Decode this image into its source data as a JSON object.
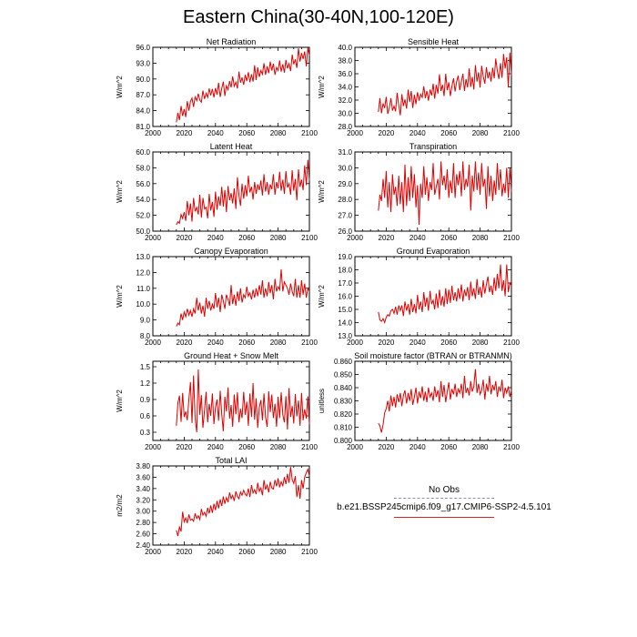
{
  "title": "Eastern China(30-40N,100-120E)",
  "colors": {
    "model": "#e00000",
    "obs": "#9a9ac0"
  },
  "legend": {
    "obs_label": "No Obs",
    "model_label": "b.e21.BSSP245cmip6.f09_g17.CMIP6-SSP2-4.5.101"
  },
  "chart_data": [
    {
      "type": "line",
      "title": "Net Radiation",
      "ylabel": "W/m^2",
      "xlim": [
        2000,
        2100
      ],
      "ylim": [
        81,
        96
      ],
      "xticks": [
        "2000",
        "2020",
        "2040",
        "2060",
        "2080",
        "2100"
      ],
      "yticks": [
        "81.0",
        "84.0",
        "87.0",
        "90.0",
        "93.0",
        "96.0"
      ],
      "x_start": 2015,
      "x_step": 1,
      "series": [
        {
          "name": "model",
          "values": [
            81.8,
            83.6,
            82.2,
            84.9,
            83.0,
            84.3,
            82.8,
            85.8,
            84.0,
            85.7,
            86.4,
            84.7,
            86.6,
            85.9,
            87.2,
            86.0,
            85.6,
            87.8,
            86.2,
            87.3,
            86.5,
            88.2,
            86.9,
            88.1,
            86.5,
            88.3,
            87.0,
            89.3,
            86.6,
            88.2,
            89.5,
            86.8,
            88.7,
            88.0,
            89.6,
            88.4,
            90.5,
            88.6,
            89.4,
            88.2,
            91.4,
            89.3,
            90.3,
            88.9,
            90.8,
            89.6,
            91.3,
            89.4,
            90.9,
            89.5,
            92.6,
            89.8,
            92.2,
            90.4,
            91.6,
            90.9,
            93.0,
            90.8,
            92.4,
            91.1,
            93.3,
            91.6,
            92.9,
            90.8,
            92.2,
            91.6,
            93.5,
            91.4,
            92.8,
            91.2,
            93.6,
            92.0,
            92.9,
            91.5,
            94.6,
            92.8,
            93.7,
            92.1,
            95.8,
            93.3,
            94.9,
            93.8,
            95.2,
            92.4,
            95.9,
            94.4
          ]
        }
      ]
    },
    {
      "type": "line",
      "title": "Sensible Heat",
      "ylabel": "W/m^2",
      "xlim": [
        2000,
        2100
      ],
      "ylim": [
        28,
        40
      ],
      "xticks": [
        "2000",
        "2020",
        "2040",
        "2060",
        "2080",
        "2100"
      ],
      "yticks": [
        "28.0",
        "30.0",
        "32.0",
        "34.0",
        "36.0",
        "38.0",
        "40.0"
      ],
      "x_start": 2015,
      "x_step": 1,
      "series": [
        {
          "name": "model",
          "values": [
            30.2,
            32.3,
            30.0,
            31.5,
            30.8,
            32.5,
            29.9,
            30.8,
            32.3,
            30.4,
            31.1,
            30.3,
            33.1,
            31.2,
            29.7,
            32.9,
            31.1,
            32.1,
            30.7,
            33.6,
            31.7,
            33.4,
            30.8,
            32.8,
            31.4,
            33.2,
            31.9,
            32.9,
            32.4,
            34.1,
            32.3,
            33.4,
            31.9,
            33.6,
            32.7,
            34.5,
            32.2,
            34.3,
            33.0,
            35.9,
            33.4,
            34.3,
            32.6,
            36.0,
            33.5,
            34.7,
            32.6,
            34.1,
            35.3,
            33.3,
            34.8,
            35.7,
            33.5,
            34.8,
            36.0,
            33.4,
            35.2,
            33.9,
            36.8,
            34.0,
            35.5,
            33.6,
            37.3,
            34.8,
            36.2,
            33.9,
            37.2,
            35.6,
            34.5,
            37.0,
            35.3,
            36.3,
            34.8,
            36.9,
            35.3,
            38.3,
            36.4,
            35.2,
            37.6,
            35.4,
            39.0,
            36.8,
            38.5,
            33.9,
            39.2,
            35.8
          ]
        }
      ]
    },
    {
      "type": "line",
      "title": "Latent Heat",
      "ylabel": "W/m^2",
      "xlim": [
        2000,
        2100
      ],
      "ylim": [
        50,
        60
      ],
      "xticks": [
        "2000",
        "2020",
        "2040",
        "2060",
        "2080",
        "2100"
      ],
      "yticks": [
        "50.0",
        "52.0",
        "54.0",
        "56.0",
        "58.0",
        "60.0"
      ],
      "x_start": 2015,
      "x_step": 1,
      "series": [
        {
          "name": "model",
          "values": [
            50.8,
            51.2,
            51.0,
            52.1,
            51.6,
            52.4,
            51.3,
            53.8,
            52.0,
            53.5,
            51.2,
            54.2,
            52.5,
            53.0,
            52.1,
            54.6,
            51.7,
            54.2,
            52.8,
            53.0,
            51.6,
            54.7,
            52.6,
            53.7,
            51.8,
            55.0,
            52.7,
            54.4,
            53.2,
            55.6,
            53.1,
            55.2,
            52.4,
            55.7,
            53.9,
            54.8,
            53.5,
            55.4,
            52.8,
            56.8,
            54.5,
            53.2,
            56.0,
            54.1,
            55.8,
            54.4,
            57.0,
            54.9,
            55.6,
            54.0,
            56.2,
            54.7,
            55.9,
            55.2,
            56.4,
            54.5,
            57.2,
            55.0,
            56.2,
            54.6,
            55.9,
            55.3,
            57.2,
            54.6,
            56.2,
            55.4,
            57.5,
            55.1,
            56.5,
            54.7,
            57.6,
            55.5,
            56.0,
            54.6,
            57.7,
            55.1,
            56.6,
            53.9,
            57.8,
            55.6,
            56.5,
            55.2,
            58.3,
            55.8,
            59.0,
            56.4
          ]
        }
      ]
    },
    {
      "type": "line",
      "title": "Transpiration",
      "ylabel": "W/m^2",
      "xlim": [
        2000,
        2100
      ],
      "ylim": [
        26,
        31
      ],
      "xticks": [
        "2000",
        "2020",
        "2040",
        "2060",
        "2080",
        "2100"
      ],
      "yticks": [
        "26.0",
        "27.0",
        "28.0",
        "29.0",
        "30.0",
        "31.0"
      ],
      "x_start": 2015,
      "x_step": 1,
      "series": [
        {
          "name": "model",
          "values": [
            27.3,
            28.3,
            27.9,
            29.3,
            28.1,
            29.8,
            27.5,
            29.1,
            27.2,
            29.6,
            28.3,
            28.8,
            27.6,
            29.5,
            27.7,
            29.1,
            27.2,
            30.2,
            27.6,
            29.4,
            27.9,
            30.1,
            28.1,
            29.6,
            27.5,
            28.9,
            26.4,
            29.0,
            28.1,
            30.1,
            28.3,
            29.4,
            27.9,
            29.1,
            28.6,
            30.3,
            28.3,
            28.8,
            29.3,
            28.0,
            30.4,
            28.9,
            29.5,
            28.6,
            29.9,
            28.1,
            29.2,
            28.4,
            30.3,
            28.1,
            29.6,
            28.9,
            29.8,
            28.2,
            30.4,
            28.6,
            29.3,
            28.8,
            30.2,
            27.3,
            29.5,
            28.5,
            30.4,
            28.6,
            29.7,
            28.3,
            30.3,
            28.8,
            29.3,
            27.4,
            30.1,
            28.2,
            29.5,
            27.9,
            29.2,
            28.3,
            30.3,
            28.6,
            29.9,
            28.2,
            29.0,
            28.4,
            30.0,
            28.1,
            30.0,
            28.5
          ]
        }
      ]
    },
    {
      "type": "line",
      "title": "Canopy Evaporation",
      "ylabel": "W/m^2",
      "xlim": [
        2000,
        2100
      ],
      "ylim": [
        8,
        13
      ],
      "xticks": [
        "2000",
        "2020",
        "2040",
        "2060",
        "2080",
        "2100"
      ],
      "yticks": [
        "8.0",
        "9.0",
        "10.0",
        "11.0",
        "12.0",
        "13.0"
      ],
      "x_start": 2015,
      "x_step": 1,
      "series": [
        {
          "name": "model",
          "values": [
            8.6,
            8.8,
            8.7,
            9.4,
            9.0,
            9.5,
            9.2,
            9.7,
            9.3,
            9.6,
            9.2,
            9.7,
            9.4,
            10.4,
            9.6,
            10.1,
            9.4,
            9.9,
            9.2,
            10.4,
            9.7,
            10.2,
            9.6,
            10.0,
            9.7,
            10.7,
            9.8,
            10.4,
            9.5,
            10.6,
            10.2,
            9.7,
            10.6,
            10.3,
            9.9,
            11.2,
            10.0,
            10.6,
            9.9,
            10.8,
            10.2,
            11.0,
            10.1,
            10.6,
            10.4,
            11.1,
            10.5,
            10.7,
            10.3,
            10.9,
            10.4,
            11.0,
            10.5,
            11.2,
            10.6,
            11.5,
            10.4,
            11.0,
            10.5,
            11.4,
            10.7,
            11.2,
            10.3,
            11.6,
            10.8,
            11.1,
            10.9,
            12.2,
            10.8,
            11.4,
            11.2,
            11.0,
            10.6,
            11.3,
            10.8,
            10.5,
            11.6,
            10.4,
            11.2,
            10.4,
            11.5,
            10.6,
            11.3,
            10.4,
            11.0,
            10.8
          ]
        }
      ]
    },
    {
      "type": "line",
      "title": "Ground Evaporation",
      "ylabel": "W/m^2",
      "xlim": [
        2000,
        2100
      ],
      "ylim": [
        13,
        19
      ],
      "xticks": [
        "2000",
        "2020",
        "2040",
        "2060",
        "2080",
        "2100"
      ],
      "yticks": [
        "13.0",
        "14.0",
        "15.0",
        "16.0",
        "17.0",
        "18.0",
        "19.0"
      ],
      "x_start": 2015,
      "x_step": 1,
      "series": [
        {
          "name": "model",
          "values": [
            14.8,
            14.2,
            14.1,
            14.3,
            14.0,
            14.4,
            14.6,
            14.5,
            14.9,
            15.0,
            14.7,
            15.2,
            14.6,
            15.3,
            14.9,
            15.3,
            14.5,
            15.6,
            14.9,
            15.4,
            14.6,
            15.8,
            14.8,
            15.4,
            14.7,
            16.1,
            15.0,
            15.6,
            14.8,
            16.3,
            15.2,
            15.9,
            14.9,
            16.4,
            15.4,
            15.7,
            15.0,
            16.2,
            15.1,
            16.5,
            15.3,
            16.0,
            15.2,
            16.6,
            15.4,
            16.5,
            15.5,
            16.8,
            15.7,
            16.3,
            15.6,
            16.6,
            15.8,
            16.9,
            15.6,
            16.5,
            16.0,
            16.7,
            15.7,
            17.1,
            16.0,
            16.6,
            15.8,
            17.3,
            16.1,
            16.7,
            15.9,
            17.2,
            16.2,
            16.9,
            17.5,
            16.3,
            16.8,
            16.1,
            17.4,
            16.4,
            17.7,
            16.6,
            18.4,
            16.4,
            17.2,
            16.0,
            18.4,
            16.3,
            17.0,
            16.8
          ]
        }
      ]
    },
    {
      "type": "line",
      "title": "Ground Heat + Snow Melt",
      "ylabel": "W/m^2",
      "xlim": [
        2000,
        2100
      ],
      "ylim": [
        0.15,
        1.6
      ],
      "xticks": [
        "2000",
        "2020",
        "2040",
        "2060",
        "2080",
        "2100"
      ],
      "yticks": [
        "0.3",
        "0.6",
        "0.9",
        "1.2",
        "1.5"
      ],
      "x_start": 2015,
      "x_step": 1,
      "series": [
        {
          "name": "model",
          "values": [
            0.42,
            0.84,
            0.97,
            0.49,
            1.02,
            0.58,
            0.68,
            0.52,
            0.91,
            1.22,
            0.47,
            1.34,
            0.56,
            0.3,
            1.45,
            0.62,
            0.98,
            0.38,
            0.71,
            1.04,
            0.48,
            0.82,
            0.6,
            1.01,
            0.45,
            0.75,
            0.9,
            0.51,
            1.06,
            0.63,
            0.32,
            0.95,
            0.68,
            1.12,
            0.55,
            0.8,
            0.4,
            0.99,
            0.63,
            1.03,
            0.48,
            0.73,
            0.56,
            1.04,
            0.62,
            0.86,
            0.42,
            1.01,
            0.58,
            1.2,
            0.53,
            0.92,
            0.38,
            0.76,
            0.89,
            0.52,
            1.01,
            0.58,
            0.4,
            1.05,
            0.67,
            0.99,
            0.56,
            0.82,
            0.4,
            0.95,
            0.56,
            1.03,
            0.62,
            0.48,
            0.96,
            0.35,
            1.11,
            0.58,
            0.78,
            0.46,
            1.0,
            0.59,
            0.88,
            0.42,
            1.02,
            0.52,
            0.72,
            0.55,
            0.96,
            0.45
          ]
        }
      ]
    },
    {
      "type": "line",
      "title": "Soil moisture factor (BTRAN or BTRANMN)",
      "ylabel": "unitless",
      "xlim": [
        2000,
        2100
      ],
      "ylim": [
        0.8,
        0.86
      ],
      "xticks": [
        "2000",
        "2020",
        "2040",
        "2060",
        "2080",
        "2100"
      ],
      "yticks": [
        "0.800",
        "0.810",
        "0.820",
        "0.830",
        "0.840",
        "0.850",
        "0.860"
      ],
      "x_start": 2015,
      "x_step": 1,
      "series": [
        {
          "name": "model",
          "values": [
            0.813,
            0.811,
            0.806,
            0.812,
            0.821,
            0.824,
            0.83,
            0.822,
            0.834,
            0.826,
            0.833,
            0.825,
            0.835,
            0.829,
            0.836,
            0.826,
            0.834,
            0.838,
            0.828,
            0.836,
            0.83,
            0.839,
            0.827,
            0.833,
            0.84,
            0.828,
            0.837,
            0.832,
            0.841,
            0.83,
            0.837,
            0.829,
            0.84,
            0.833,
            0.836,
            0.83,
            0.841,
            0.833,
            0.838,
            0.829,
            0.845,
            0.833,
            0.842,
            0.829,
            0.837,
            0.844,
            0.831,
            0.839,
            0.835,
            0.843,
            0.833,
            0.839,
            0.836,
            0.843,
            0.832,
            0.849,
            0.836,
            0.84,
            0.834,
            0.845,
            0.837,
            0.841,
            0.854,
            0.836,
            0.843,
            0.835,
            0.838,
            0.846,
            0.831,
            0.843,
            0.837,
            0.849,
            0.835,
            0.842,
            0.838,
            0.845,
            0.833,
            0.841,
            0.837,
            0.846,
            0.832,
            0.84,
            0.836,
            0.841,
            0.833,
            0.838
          ]
        }
      ]
    },
    {
      "type": "line",
      "title": "Total LAI",
      "ylabel": "m2/m2",
      "xlim": [
        2000,
        2100
      ],
      "ylim": [
        2.4,
        3.8
      ],
      "xticks": [
        "2000",
        "2020",
        "2040",
        "2060",
        "2080",
        "2100"
      ],
      "yticks": [
        "2.40",
        "2.60",
        "2.80",
        "3.00",
        "3.20",
        "3.40",
        "3.60",
        "3.80"
      ],
      "x_start": 2015,
      "x_step": 1,
      "series": [
        {
          "name": "model",
          "values": [
            2.66,
            2.56,
            2.72,
            2.64,
            2.99,
            2.81,
            2.88,
            2.79,
            2.94,
            2.84,
            2.86,
            2.82,
            2.96,
            2.87,
            2.92,
            2.85,
            3.04,
            2.93,
            2.98,
            2.91,
            3.06,
            2.96,
            3.1,
            2.97,
            3.13,
            3.02,
            3.18,
            3.05,
            3.21,
            3.09,
            3.26,
            3.13,
            3.24,
            3.16,
            3.33,
            3.22,
            3.28,
            3.18,
            3.35,
            3.26,
            3.22,
            3.34,
            3.28,
            3.37,
            3.3,
            3.27,
            3.4,
            3.25,
            3.46,
            3.32,
            3.38,
            3.3,
            3.5,
            3.35,
            3.41,
            3.28,
            3.55,
            3.38,
            3.46,
            3.33,
            3.52,
            3.41,
            3.39,
            3.55,
            3.44,
            3.58,
            3.42,
            3.52,
            3.45,
            3.6,
            3.48,
            3.66,
            3.5,
            3.78,
            3.56,
            3.49,
            3.62,
            3.25,
            3.46,
            3.22,
            3.55,
            3.4,
            3.6,
            3.68,
            3.74,
            3.62
          ]
        }
      ]
    }
  ]
}
